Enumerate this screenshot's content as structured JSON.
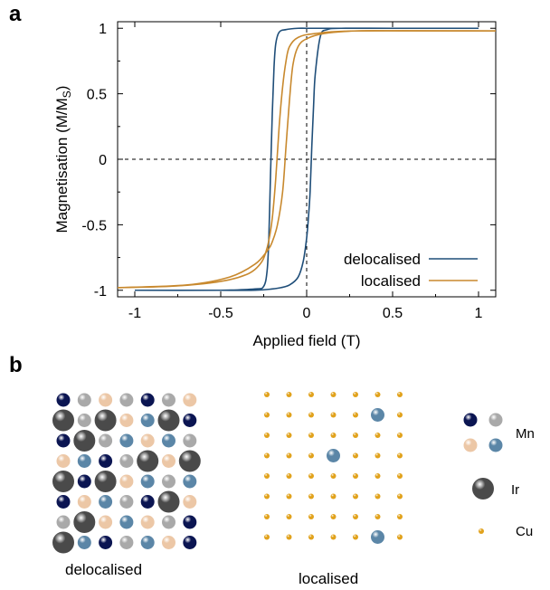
{
  "panel_a": {
    "letter": "a",
    "chart_data": {
      "type": "line",
      "title": "",
      "xlabel": "Applied field (T)",
      "ylabel": "Magnetisation (M/M",
      "ylabel_sub": "S",
      "ylabel_close": ")",
      "xlim": [
        -1.1,
        1.1
      ],
      "ylim": [
        -1.05,
        1.05
      ],
      "x_ticks": [
        -1,
        -0.5,
        0,
        0.5,
        1
      ],
      "x_tick_labels": [
        "-1",
        "-0.5",
        "0",
        "0.5",
        "1"
      ],
      "y_ticks": [
        -1,
        -0.5,
        0,
        0.5,
        1
      ],
      "y_tick_labels": [
        "-1",
        "-0.5",
        "0",
        "0.5",
        "1"
      ],
      "reference_lines": {
        "x": 0,
        "y": 0,
        "style": "dashed"
      },
      "legend_placement": "bottom-right",
      "series": [
        {
          "name": "delocalised",
          "color": "#1f4e79",
          "branches": [
            {
              "x": [
                1.0,
                0.5,
                0.2,
                0.12,
                0.08,
                0.05,
                0.04,
                0.03,
                0.02,
                0.01,
                0.0,
                -0.02,
                -0.05,
                -0.1,
                -0.15,
                -0.2,
                -0.3,
                -0.5,
                -1.0
              ],
              "y": [
                1.0,
                1.0,
                1.0,
                0.99,
                0.94,
                0.65,
                0.4,
                0.1,
                -0.25,
                -0.45,
                -0.6,
                -0.78,
                -0.9,
                -0.96,
                -0.98,
                -0.99,
                -1.0,
                -1.0,
                -1.0
              ]
            },
            {
              "x": [
                -1.0,
                -0.5,
                -0.3,
                -0.25,
                -0.23,
                -0.22,
                -0.21,
                -0.2,
                -0.19,
                -0.18,
                -0.16,
                -0.12,
                -0.05,
                0.0,
                0.1,
                0.5,
                1.0
              ],
              "y": [
                -1.0,
                -1.0,
                -0.99,
                -0.97,
                -0.85,
                -0.6,
                -0.1,
                0.35,
                0.7,
                0.88,
                0.97,
                0.99,
                1.0,
                1.0,
                1.0,
                1.0,
                1.0
              ]
            }
          ]
        },
        {
          "name": "localised",
          "color": "#c8892e",
          "branches": [
            {
              "x": [
                -1.1,
                -0.8,
                -0.6,
                -0.45,
                -0.35,
                -0.3,
                -0.26,
                -0.24,
                -0.22,
                -0.2,
                -0.18,
                -0.16,
                -0.14,
                -0.12,
                -0.1,
                -0.05,
                0.05,
                0.3,
                1.1
              ],
              "y": [
                -0.98,
                -0.97,
                -0.95,
                -0.92,
                -0.88,
                -0.84,
                -0.78,
                -0.72,
                -0.62,
                -0.45,
                -0.15,
                0.25,
                0.55,
                0.75,
                0.86,
                0.93,
                0.96,
                0.98,
                0.98
              ]
            },
            {
              "x": [
                1.1,
                0.6,
                0.3,
                0.1,
                0.0,
                -0.05,
                -0.08,
                -0.1,
                -0.12,
                -0.14,
                -0.17,
                -0.2,
                -0.23,
                -0.3,
                -0.45,
                -0.7,
                -1.1
              ],
              "y": [
                0.98,
                0.98,
                0.98,
                0.96,
                0.92,
                0.86,
                0.72,
                0.45,
                0.1,
                -0.25,
                -0.5,
                -0.63,
                -0.7,
                -0.8,
                -0.9,
                -0.96,
                -0.98
              ]
            }
          ]
        }
      ]
    }
  },
  "panel_b": {
    "letter": "b",
    "caption_delocalised": "delocalised",
    "caption_localised": "localised",
    "legend": [
      {
        "label": "Mn",
        "atoms": [
          "mn-a",
          "mn-b",
          "mn-c",
          "mn-d"
        ]
      },
      {
        "label": "Ir",
        "atoms": [
          "ir"
        ]
      },
      {
        "label": "Cu",
        "atoms": [
          "cu"
        ]
      }
    ],
    "atom_colors": {
      "mn-a": "#0b1552",
      "mn-b": "#a9a9a9",
      "mn-c": "#ecc7a6",
      "mn-d": "#5b86a7",
      "ir": "#4a4a4a",
      "cu": "#e1a21c"
    },
    "delocalised_rows": [
      [
        "mn-a",
        "mn-b",
        "mn-c",
        "mn-b",
        "mn-a",
        "mn-b",
        "mn-c"
      ],
      [
        "ir",
        "mn-b",
        "ir",
        "mn-c",
        "mn-d",
        "ir",
        "mn-a"
      ],
      [
        "mn-a",
        "ir",
        "mn-b",
        "mn-d",
        "mn-c",
        "mn-d",
        "mn-b"
      ],
      [
        "mn-c",
        "mn-d",
        "mn-a",
        "mn-b",
        "ir",
        "mn-c",
        "ir"
      ],
      [
        "ir",
        "mn-a",
        "ir",
        "mn-c",
        "mn-d",
        "mn-b",
        "mn-d"
      ],
      [
        "mn-a",
        "mn-c",
        "mn-d",
        "mn-b",
        "mn-a",
        "ir",
        "mn-c"
      ],
      [
        "mn-b",
        "ir",
        "mn-c",
        "mn-d",
        "mn-c",
        "mn-b",
        "mn-a"
      ],
      [
        "ir",
        "mn-d",
        "mn-a",
        "mn-b",
        "mn-d",
        "mn-c",
        "mn-a"
      ]
    ],
    "localised_grid": {
      "cols": 7,
      "rows": 8,
      "substitutions": [
        [
          5,
          1,
          "mn-d"
        ],
        [
          3,
          3,
          "mn-d"
        ],
        [
          5,
          7,
          "mn-d"
        ]
      ]
    }
  }
}
